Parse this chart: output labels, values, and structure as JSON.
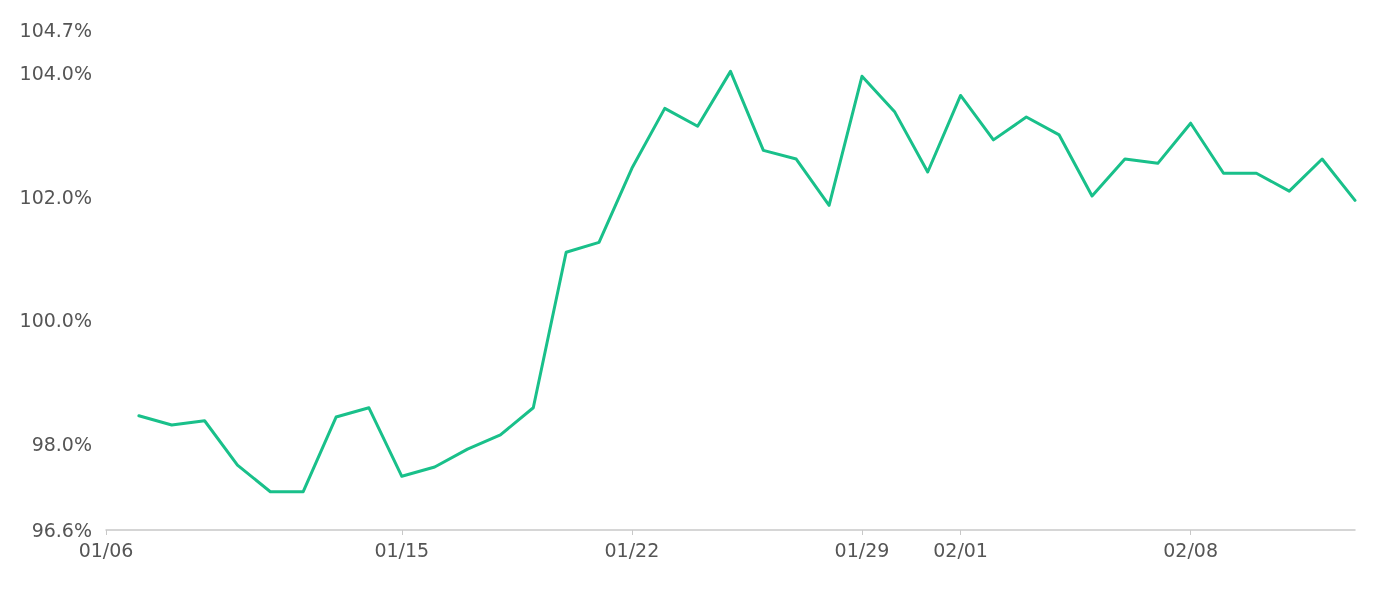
{
  "chart_data": {
    "type": "line",
    "x": [
      "--01-07",
      "--01-08",
      "--01-09",
      "--01-10",
      "--01-11",
      "--01-12",
      "--01-13",
      "--01-14",
      "--01-15",
      "--01-16",
      "--01-17",
      "--01-18",
      "--01-19",
      "--01-20",
      "--01-21",
      "--01-22",
      "--01-23",
      "--01-24",
      "--01-25",
      "--01-26",
      "--01-27",
      "--01-28",
      "--01-29",
      "--01-30",
      "--01-31",
      "--02-01",
      "--02-02",
      "--02-03",
      "--02-04",
      "--02-05",
      "--02-06",
      "--02-07",
      "--02-08",
      "--02-09",
      "--02-10",
      "--02-11",
      "--02-12",
      "--02-13"
    ],
    "series": [
      {
        "color": "#19c08a",
        "values": [
          98.45,
          98.3,
          98.37,
          97.65,
          97.22,
          97.22,
          98.43,
          98.58,
          97.47,
          97.62,
          97.91,
          98.14,
          98.58,
          101.1,
          101.26,
          102.46,
          103.43,
          103.14,
          104.03,
          102.75,
          102.61,
          101.86,
          103.95,
          103.37,
          102.4,
          103.64,
          102.92,
          103.29,
          103.0,
          102.01,
          102.61,
          102.54,
          103.19,
          102.38,
          102.38,
          102.09,
          102.61,
          101.94
        ]
      }
    ],
    "xlim": [
      "--01-06",
      "--02-13"
    ],
    "xticks": [
      {
        "value": "--01-06",
        "label": "01/06"
      },
      {
        "value": "--01-15",
        "label": "01/15"
      },
      {
        "value": "--01-22",
        "label": "01/22"
      },
      {
        "value": "--01-29",
        "label": "01/29"
      },
      {
        "value": "--02-01",
        "label": "02/01"
      },
      {
        "value": "--02-08",
        "label": "02/08"
      }
    ],
    "ylim": [
      96.6,
      104.7
    ],
    "yticks": [
      {
        "value": 96.6,
        "label": "96.6%"
      },
      {
        "value": 98,
        "label": "98.0%"
      },
      {
        "value": 100,
        "label": "100.0%"
      },
      {
        "value": 102,
        "label": "102.0%"
      },
      {
        "value": 104,
        "label": "104.0%"
      },
      {
        "value": 104.7,
        "label": "104.7%"
      }
    ],
    "grid": false,
    "marker": "none",
    "line_style": "solid"
  }
}
